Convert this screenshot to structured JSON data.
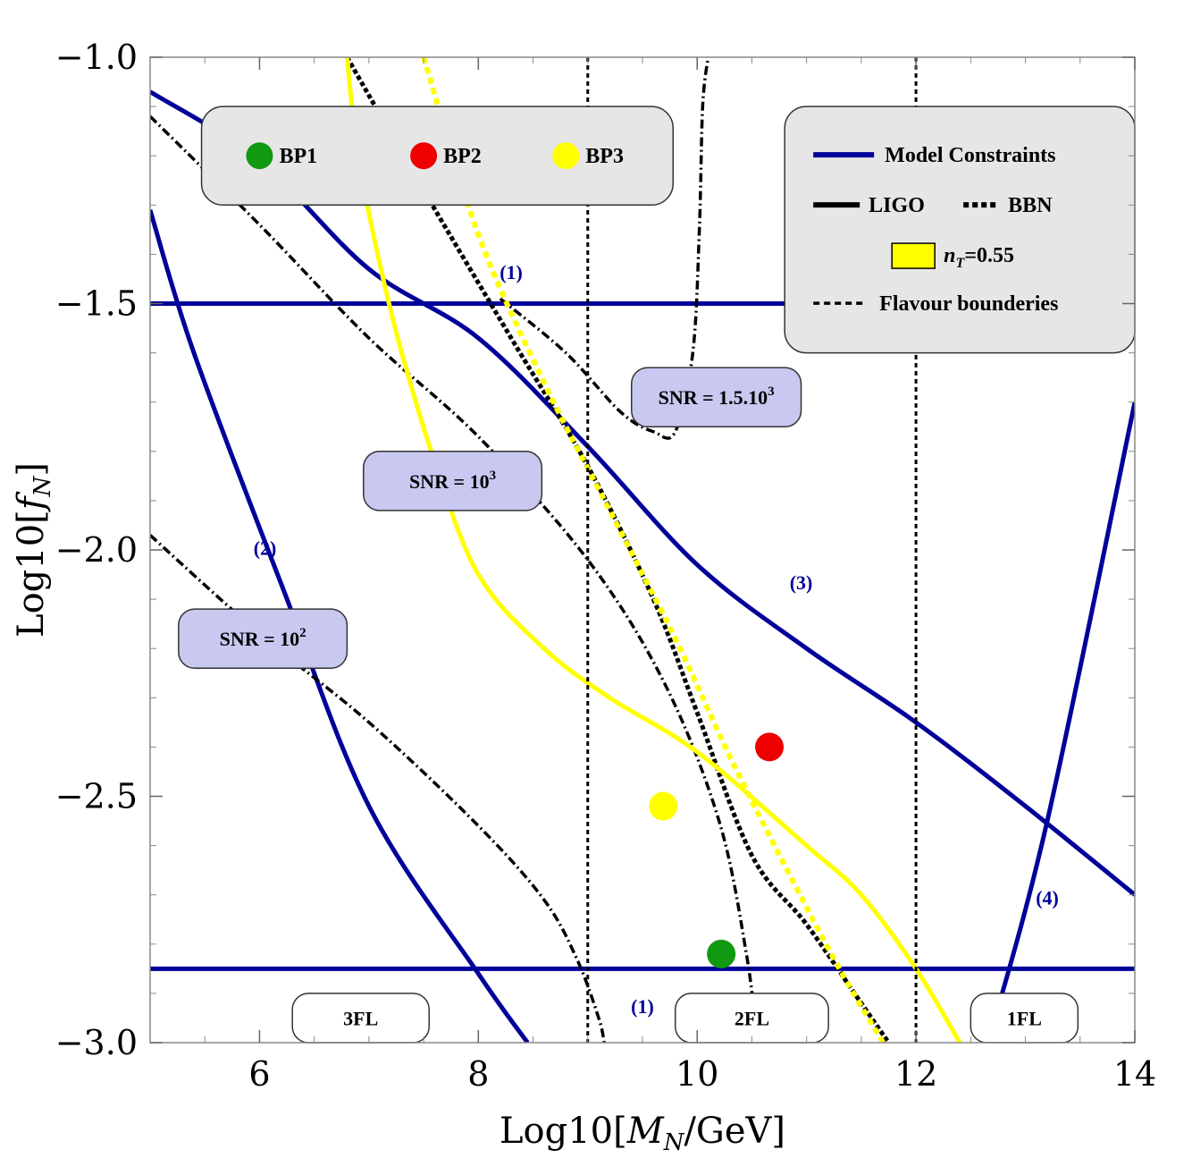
{
  "chart_data": {
    "type": "line",
    "xlabel": "Log10[M_N/GeV]",
    "xlabel_prefix": "Log10[",
    "xlabel_sym": "M",
    "xlabel_sub": "N",
    "xlabel_suffix": "/GeV]",
    "ylabel": "Log10[f_N]",
    "ylabel_prefix": "Log10[",
    "ylabel_sym": "f",
    "ylabel_sub": "N",
    "ylabel_suffix": "]",
    "xlim": [
      5,
      14
    ],
    "ylim": [
      -3.0,
      -1.0
    ],
    "xticks": [
      6,
      8,
      10,
      12,
      14
    ],
    "yticks": [
      -3.0,
      -2.5,
      -2.0,
      -1.5,
      -1.0
    ],
    "xtick_labels": [
      "6",
      "8",
      "10",
      "12",
      "14"
    ],
    "ytick_labels": [
      "−3.0",
      "−2.5",
      "−2.0",
      "−1.5",
      "−1.0"
    ],
    "colors": {
      "model": "#00009a",
      "ligo": "#000000",
      "bbn": "#000000",
      "nt": "#ffff00",
      "bp1": "#119911",
      "bp2": "#ee0000",
      "bp3": "#ffff00",
      "snr_box": "#c8c8f0",
      "legend_box": "#e6e6e6"
    },
    "series": [
      {
        "name": "Model constraint (1) upper",
        "kind": "model",
        "points": [
          [
            5,
            -1.5
          ],
          [
            14,
            -1.5
          ]
        ]
      },
      {
        "name": "Model constraint (1) lower",
        "kind": "model",
        "points": [
          [
            5,
            -2.85
          ],
          [
            14,
            -2.85
          ]
        ]
      },
      {
        "name": "Model constraint (2)",
        "kind": "model",
        "points": [
          [
            5,
            -1.31
          ],
          [
            5.4,
            -1.6
          ],
          [
            6.2,
            -2.07
          ],
          [
            7.0,
            -2.52
          ],
          [
            8.0,
            -2.86
          ],
          [
            8.45,
            -3.0
          ]
        ]
      },
      {
        "name": "Model constraint (3)",
        "kind": "model",
        "points": [
          [
            5,
            -1.07
          ],
          [
            6,
            -1.21
          ],
          [
            7,
            -1.43
          ],
          [
            8,
            -1.57
          ],
          [
            9,
            -1.79
          ],
          [
            10,
            -2.03
          ],
          [
            11,
            -2.2
          ],
          [
            12,
            -2.35
          ],
          [
            13,
            -2.52
          ],
          [
            14,
            -2.7
          ]
        ]
      },
      {
        "name": "Model constraint (4)",
        "kind": "model",
        "points": [
          [
            12.66,
            -3.0
          ],
          [
            13.2,
            -2.55
          ],
          [
            14,
            -1.7
          ]
        ]
      },
      {
        "name": "SNR = 10^2",
        "kind": "ligo",
        "points": [
          [
            5,
            -1.97
          ],
          [
            6,
            -2.17
          ],
          [
            7,
            -2.35
          ],
          [
            8,
            -2.56
          ],
          [
            8.6,
            -2.71
          ],
          [
            8.9,
            -2.83
          ],
          [
            9.1,
            -2.95
          ],
          [
            9.15,
            -3.0
          ]
        ]
      },
      {
        "name": "SNR = 10^3",
        "kind": "ligo",
        "points": [
          [
            5,
            -1.12
          ],
          [
            6,
            -1.34
          ],
          [
            7,
            -1.57
          ],
          [
            8,
            -1.77
          ],
          [
            9,
            -2.02
          ],
          [
            9.7,
            -2.27
          ],
          [
            10.2,
            -2.55
          ],
          [
            10.45,
            -2.82
          ],
          [
            10.55,
            -3.0
          ]
        ]
      },
      {
        "name": "SNR = 1.5.10^3",
        "kind": "ligo",
        "points": [
          [
            8.2,
            -1.49
          ],
          [
            8.8,
            -1.6
          ],
          [
            9.3,
            -1.72
          ],
          [
            9.6,
            -1.76
          ],
          [
            9.8,
            -1.76
          ],
          [
            9.96,
            -1.6
          ],
          [
            10.02,
            -1.35
          ],
          [
            10.05,
            -1.1
          ],
          [
            10.1,
            -1.0
          ]
        ]
      },
      {
        "name": "BBN (f_N vs M_N)",
        "kind": "bbn",
        "points": [
          [
            6.8,
            -1.0
          ],
          [
            7.5,
            -1.27
          ],
          [
            8.3,
            -1.57
          ],
          [
            9,
            -1.83
          ],
          [
            9.6,
            -2.1
          ],
          [
            10,
            -2.33
          ],
          [
            10.5,
            -2.62
          ],
          [
            11,
            -2.76
          ],
          [
            11.5,
            -2.92
          ],
          [
            11.75,
            -3.0
          ]
        ]
      },
      {
        "name": "n_T = 0.55 (LIGO)",
        "kind": "nt_solid",
        "points": [
          [
            6.8,
            -1.0
          ],
          [
            6.9,
            -1.2
          ],
          [
            7.1,
            -1.42
          ],
          [
            7.3,
            -1.6
          ],
          [
            7.6,
            -1.82
          ],
          [
            8.0,
            -2.05
          ],
          [
            8.6,
            -2.2
          ],
          [
            9.2,
            -2.3
          ],
          [
            10,
            -2.41
          ],
          [
            11,
            -2.6
          ],
          [
            11.5,
            -2.7
          ],
          [
            12,
            -2.85
          ],
          [
            12.4,
            -3.0
          ]
        ]
      },
      {
        "name": "n_T = 0.55 (BBN)",
        "kind": "nt_dotted",
        "points": [
          [
            7.5,
            -1.0
          ],
          [
            8.0,
            -1.36
          ],
          [
            8.6,
            -1.66
          ],
          [
            9.2,
            -1.92
          ],
          [
            9.8,
            -2.18
          ],
          [
            10.3,
            -2.42
          ],
          [
            10.8,
            -2.64
          ],
          [
            11.3,
            -2.85
          ],
          [
            11.7,
            -3.0
          ]
        ]
      },
      {
        "name": "Flavour boundary M_N = 10^9",
        "kind": "flavour",
        "points": [
          [
            9,
            -1.0
          ],
          [
            9,
            -3.0
          ]
        ]
      },
      {
        "name": "Flavour boundary M_N = 10^12",
        "kind": "flavour",
        "points": [
          [
            12,
            -1.0
          ],
          [
            12,
            -3.0
          ]
        ]
      }
    ],
    "benchmark_points": [
      {
        "name": "BP1",
        "x": 10.22,
        "y": -2.82,
        "color": "#119911"
      },
      {
        "name": "BP2",
        "x": 10.66,
        "y": -2.4,
        "color": "#ee0000"
      },
      {
        "name": "BP3",
        "x": 9.69,
        "y": -2.52,
        "color": "#ffff00"
      }
    ],
    "snr_boxes": [
      {
        "label": "SNR = 10",
        "sup": "2",
        "x0": 5.26,
        "x1": 6.8,
        "y0": -2.12,
        "y1": -2.24
      },
      {
        "label": "SNR = 10",
        "sup": "3",
        "x0": 6.95,
        "x1": 8.58,
        "y0": -1.8,
        "y1": -1.92
      },
      {
        "label": "SNR = 1.5.10",
        "sup": "3",
        "x0": 9.4,
        "x1": 10.95,
        "y0": -1.63,
        "y1": -1.75
      }
    ],
    "region_boxes": [
      {
        "label": "3FL",
        "x0": 6.3,
        "x1": 7.55,
        "y0": -2.9,
        "y1": -3.0
      },
      {
        "label": "2FL",
        "x0": 9.8,
        "x1": 11.2,
        "y0": -2.9,
        "y1": -3.0
      },
      {
        "label": "1FL",
        "x0": 12.5,
        "x1": 13.48,
        "y0": -2.9,
        "y1": -3.0
      }
    ],
    "constraint_labels": [
      {
        "label": "(1)",
        "x": 8.3,
        "y": -1.45
      },
      {
        "label": "(1)",
        "x": 9.5,
        "y": -2.94
      },
      {
        "label": "(2)",
        "x": 6.05,
        "y": -2.01
      },
      {
        "label": "(3)",
        "x": 10.95,
        "y": -2.08
      },
      {
        "label": "(4)",
        "x": 13.2,
        "y": -2.72
      }
    ],
    "legend_bp": {
      "placement": "top-left",
      "x0": 5.47,
      "x1": 9.78,
      "y0": -1.1,
      "y1": -1.3,
      "items": [
        {
          "label": "BP1",
          "color": "#119911",
          "x": 6.0,
          "y": -1.2
        },
        {
          "label": "BP2",
          "color": "#ee0000",
          "x": 7.5,
          "y": -1.2
        },
        {
          "label": "BP3",
          "color": "#ffff00",
          "x": 8.8,
          "y": -1.2
        }
      ]
    },
    "legend": {
      "placement": "top-right",
      "x0": 10.8,
      "x1": 14.0,
      "y0": -1.1,
      "y1": -1.6,
      "model_label": "Model Constraints",
      "ligo_label": "LIGO",
      "bbn_label": "BBN",
      "nt_label_sym": "n",
      "nt_label_sub": "T",
      "nt_label_value": "=0.55",
      "flavour_label": "Flavour bounderies"
    }
  }
}
